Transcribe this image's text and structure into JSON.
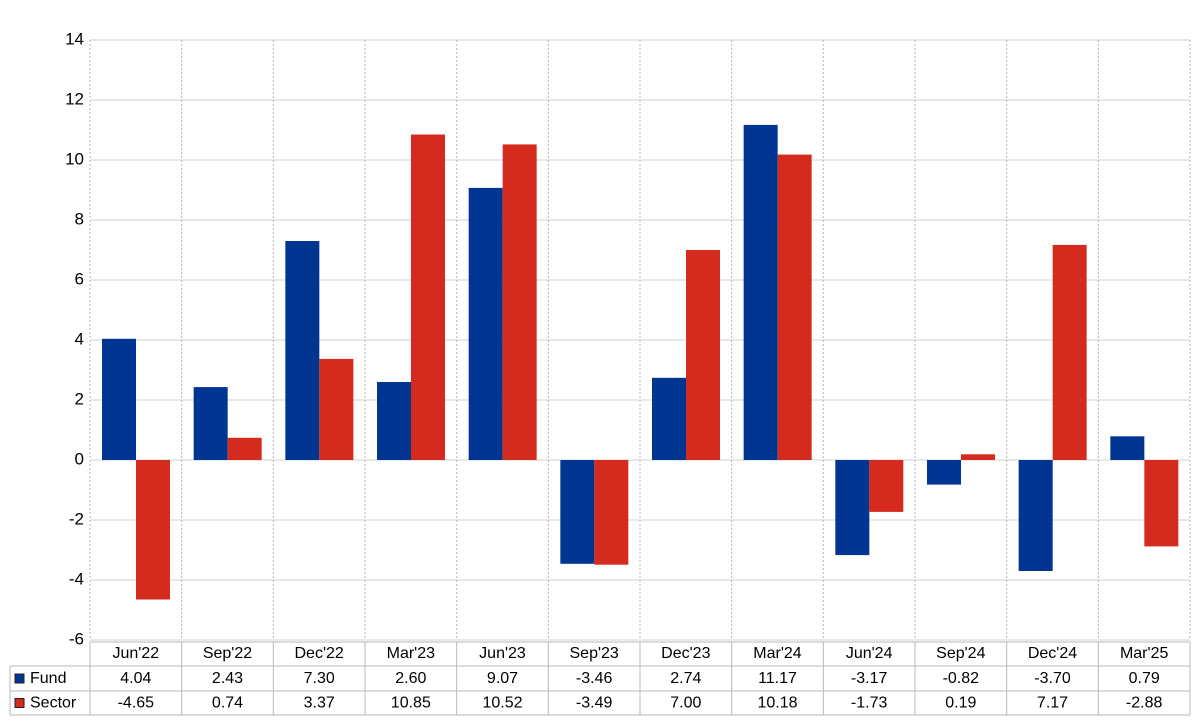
{
  "chart_data": {
    "type": "bar",
    "categories": [
      "Jun'22",
      "Sep'22",
      "Dec'22",
      "Mar'23",
      "Jun'23",
      "Sep'23",
      "Dec'23",
      "Mar'24",
      "Jun'24",
      "Sep'24",
      "Dec'24",
      "Mar'25"
    ],
    "series": [
      {
        "name": "Fund",
        "color": "#003591",
        "values": [
          4.04,
          2.43,
          7.3,
          2.6,
          9.07,
          -3.46,
          2.74,
          11.17,
          -3.17,
          -0.82,
          -3.7,
          0.79
        ],
        "value_labels": [
          "4.04",
          "2.43",
          "7.30",
          "2.60",
          "9.07",
          "-3.46",
          "2.74",
          "11.17",
          "-3.17",
          "-0.82",
          "-3.70",
          "0.79"
        ]
      },
      {
        "name": "Sector",
        "color": "#d52b1e",
        "values": [
          -4.65,
          0.74,
          3.37,
          10.85,
          10.52,
          -3.49,
          7.0,
          10.18,
          -1.73,
          0.19,
          7.17,
          -2.88
        ],
        "value_labels": [
          "-4.65",
          "0.74",
          "3.37",
          "10.85",
          "10.52",
          "-3.49",
          "7.00",
          "10.18",
          "-1.73",
          "0.19",
          "7.17",
          "-2.88"
        ]
      }
    ],
    "ylim": [
      -6,
      14
    ],
    "yticks": [
      -6,
      -4,
      -2,
      0,
      2,
      4,
      6,
      8,
      10,
      12,
      14
    ],
    "grid": true
  }
}
